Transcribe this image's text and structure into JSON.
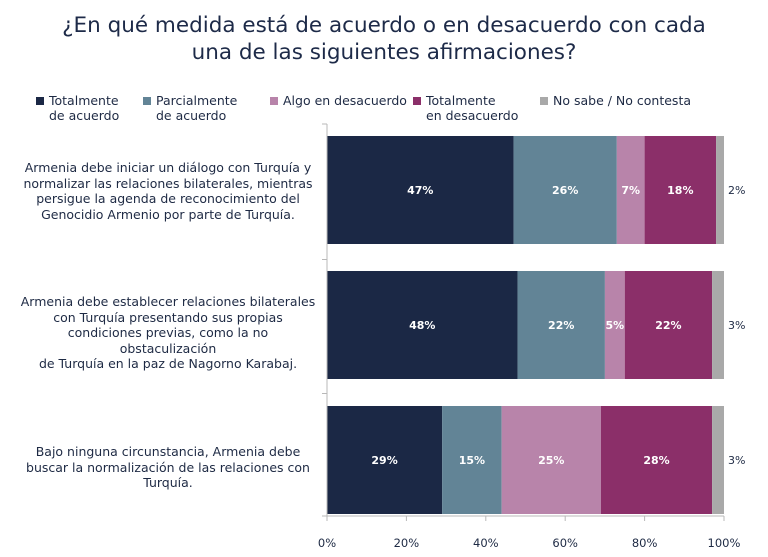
{
  "title_line1": "¿En qué medida está de acuerdo o en desacuerdo con cada",
  "title_line2": "una de las siguientes afirmaciones?",
  "chart_data": {
    "type": "bar",
    "orientation": "horizontal",
    "stacked": true,
    "xlim": [
      0,
      100
    ],
    "x_ticks": [
      "0%",
      "20%",
      "40%",
      "60%",
      "80%",
      "100%"
    ],
    "grid": false,
    "legend_position": "top",
    "categories": [
      "Armenia debe iniciar un diálogo con Turquía y\nnormalizar las relaciones bilaterales, mientras\npersigue la agenda de reconocimiento del\nGenocidio Armenio por parte de Turquía.",
      "Armenia debe establecer relaciones bilaterales\ncon Turquía presentando sus propias\ncondiciones previas, como la no obstaculización\nde Turquía en la paz de Nagorno Karabaj.",
      "Bajo ninguna circunstancia, Armenia debe\nbuscar la normalización de las relaciones con\nTurquía."
    ],
    "series": [
      {
        "name": "Totalmente\nde acuerdo",
        "color": "#1b2845",
        "values": [
          47,
          48,
          29
        ],
        "labels": [
          "47%",
          "48%",
          "29%"
        ]
      },
      {
        "name": "Parcialmente\nde acuerdo",
        "color": "#628496",
        "values": [
          26,
          22,
          15
        ],
        "labels": [
          "26%",
          "22%",
          "15%"
        ]
      },
      {
        "name": "Algo en desacuerdo",
        "color": "#b884aa",
        "values": [
          7,
          5,
          25
        ],
        "labels": [
          "7%",
          "5%",
          "25%"
        ]
      },
      {
        "name": "Totalmente\nen desacuerdo",
        "color": "#8b2f69",
        "values": [
          18,
          22,
          28
        ],
        "labels": [
          "18%",
          "22%",
          "28%"
        ]
      },
      {
        "name": "No sabe / No contesta",
        "color": "#a9a9a9",
        "values": [
          2,
          3,
          3
        ],
        "labels": [
          "2%",
          "3%",
          "3%"
        ]
      }
    ]
  }
}
